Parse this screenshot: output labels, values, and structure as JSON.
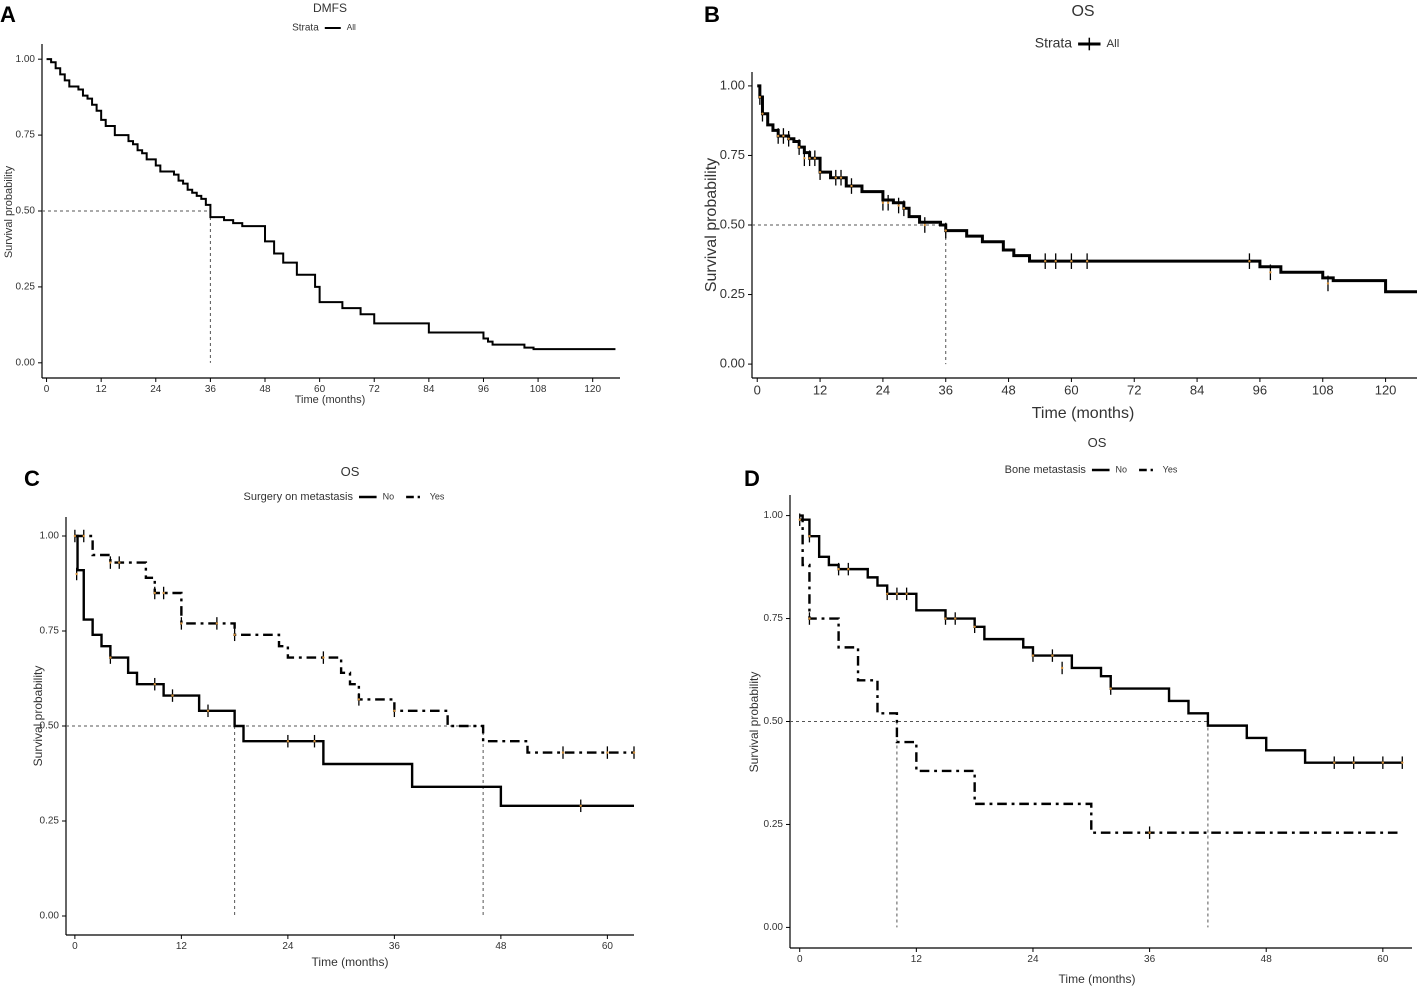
{
  "chart_data": [
    {
      "type": "line",
      "panel": "A",
      "title": "DMFS",
      "legend_title": "Strata",
      "xlabel": "Time (months)",
      "ylabel": "Survival probability",
      "xlim": [
        -1,
        126
      ],
      "ylim": [
        -0.05,
        1.05
      ],
      "xticks": [
        0,
        12,
        24,
        36,
        48,
        60,
        72,
        84,
        96,
        108,
        120
      ],
      "yticks": [
        0.0,
        0.25,
        0.5,
        0.75,
        1.0
      ],
      "ytick_labels": [
        "0.00",
        "0.25",
        "0.50",
        "0.75",
        "1.00"
      ],
      "median": [
        {
          "x": 36,
          "y": 0.5
        }
      ],
      "series": [
        {
          "name": "All",
          "style": "solid",
          "censors": [],
          "steps": [
            [
              0,
              1.0
            ],
            [
              1,
              0.99
            ],
            [
              2,
              0.97
            ],
            [
              3,
              0.95
            ],
            [
              4,
              0.93
            ],
            [
              5,
              0.91
            ],
            [
              7,
              0.9
            ],
            [
              8,
              0.88
            ],
            [
              9,
              0.87
            ],
            [
              10,
              0.85
            ],
            [
              11,
              0.83
            ],
            [
              12,
              0.8
            ],
            [
              13,
              0.78
            ],
            [
              15,
              0.75
            ],
            [
              18,
              0.73
            ],
            [
              19,
              0.72
            ],
            [
              20,
              0.7
            ],
            [
              21,
              0.69
            ],
            [
              22,
              0.67
            ],
            [
              24,
              0.65
            ],
            [
              25,
              0.63
            ],
            [
              28,
              0.62
            ],
            [
              29,
              0.6
            ],
            [
              30,
              0.59
            ],
            [
              31,
              0.57
            ],
            [
              32,
              0.56
            ],
            [
              33,
              0.55
            ],
            [
              34,
              0.54
            ],
            [
              35,
              0.52
            ],
            [
              36,
              0.48
            ],
            [
              39,
              0.47
            ],
            [
              41,
              0.46
            ],
            [
              43,
              0.45
            ],
            [
              48,
              0.4
            ],
            [
              50,
              0.36
            ],
            [
              52,
              0.33
            ],
            [
              55,
              0.29
            ],
            [
              59,
              0.25
            ],
            [
              60,
              0.2
            ],
            [
              65,
              0.18
            ],
            [
              69,
              0.16
            ],
            [
              72,
              0.13
            ],
            [
              84,
              0.1
            ],
            [
              96,
              0.08
            ],
            [
              97,
              0.07
            ],
            [
              98,
              0.06
            ],
            [
              105,
              0.05
            ],
            [
              107,
              0.045
            ],
            [
              125,
              0.045
            ]
          ]
        }
      ]
    },
    {
      "type": "line",
      "panel": "B",
      "title": "OS",
      "legend_title": "Strata",
      "xlabel": "Time (months)",
      "ylabel": "Survival probability",
      "xlim": [
        -1,
        126
      ],
      "ylim": [
        -0.05,
        1.05
      ],
      "xticks": [
        0,
        12,
        24,
        36,
        48,
        60,
        72,
        84,
        96,
        108,
        120
      ],
      "yticks": [
        0.0,
        0.25,
        0.5,
        0.75,
        1.0
      ],
      "ytick_labels": [
        "0.00",
        "0.25",
        "0.50",
        "0.75",
        "1.00"
      ],
      "median": [
        {
          "x": 36,
          "y": 0.5
        }
      ],
      "series": [
        {
          "name": "All",
          "style": "solid",
          "censors": [
            [
              0.5,
              0.96
            ],
            [
              1,
              0.9
            ],
            [
              4,
              0.82
            ],
            [
              5,
              0.82
            ],
            [
              6,
              0.81
            ],
            [
              8,
              0.78
            ],
            [
              9,
              0.74
            ],
            [
              10,
              0.74
            ],
            [
              11,
              0.74
            ],
            [
              12,
              0.69
            ],
            [
              15,
              0.67
            ],
            [
              16,
              0.67
            ],
            [
              18,
              0.64
            ],
            [
              24,
              0.58
            ],
            [
              25,
              0.58
            ],
            [
              27,
              0.57
            ],
            [
              28,
              0.56
            ],
            [
              32,
              0.5
            ],
            [
              36,
              0.48
            ],
            [
              55,
              0.37
            ],
            [
              57,
              0.37
            ],
            [
              60,
              0.37
            ],
            [
              63,
              0.37
            ],
            [
              94,
              0.37
            ],
            [
              98,
              0.33
            ],
            [
              109,
              0.29
            ]
          ],
          "steps": [
            [
              0,
              1.0
            ],
            [
              0.5,
              0.96
            ],
            [
              1,
              0.9
            ],
            [
              2,
              0.86
            ],
            [
              3,
              0.84
            ],
            [
              4,
              0.82
            ],
            [
              6,
              0.81
            ],
            [
              7,
              0.8
            ],
            [
              8,
              0.78
            ],
            [
              9,
              0.76
            ],
            [
              10,
              0.74
            ],
            [
              12,
              0.69
            ],
            [
              14,
              0.67
            ],
            [
              17,
              0.64
            ],
            [
              20,
              0.62
            ],
            [
              24,
              0.59
            ],
            [
              26,
              0.58
            ],
            [
              28,
              0.56
            ],
            [
              29,
              0.53
            ],
            [
              31,
              0.51
            ],
            [
              35,
              0.5
            ],
            [
              36,
              0.48
            ],
            [
              40,
              0.46
            ],
            [
              43,
              0.44
            ],
            [
              47,
              0.41
            ],
            [
              49,
              0.39
            ],
            [
              52,
              0.37
            ],
            [
              96,
              0.35
            ],
            [
              100,
              0.33
            ],
            [
              108,
              0.31
            ],
            [
              110,
              0.3
            ],
            [
              120,
              0.26
            ],
            [
              126,
              0.26
            ]
          ]
        }
      ]
    },
    {
      "type": "line",
      "panel": "C",
      "title": "OS",
      "legend_title": "Surgery on metastasis",
      "xlabel": "Time (months)",
      "ylabel": "Survival probability",
      "xlim": [
        -1,
        63
      ],
      "ylim": [
        -0.05,
        1.05
      ],
      "xticks": [
        0,
        12,
        24,
        36,
        48,
        60
      ],
      "yticks": [
        0.0,
        0.25,
        0.5,
        0.75,
        1.0
      ],
      "ytick_labels": [
        "0.00",
        "0.25",
        "0.50",
        "0.75",
        "1.00"
      ],
      "median": [
        {
          "x": 18,
          "y": 0.5
        },
        {
          "x": 46,
          "y": 0.5
        }
      ],
      "series": [
        {
          "name": "No",
          "style": "solid",
          "censors": [
            [
              0.2,
              0.9
            ],
            [
              4,
              0.68
            ],
            [
              9,
              0.61
            ],
            [
              11,
              0.58
            ],
            [
              15,
              0.54
            ],
            [
              24,
              0.46
            ],
            [
              27,
              0.46
            ],
            [
              57,
              0.29
            ]
          ],
          "steps": [
            [
              0,
              1.0
            ],
            [
              0.3,
              0.91
            ],
            [
              1,
              0.78
            ],
            [
              2,
              0.74
            ],
            [
              3,
              0.71
            ],
            [
              4,
              0.68
            ],
            [
              6,
              0.64
            ],
            [
              7,
              0.61
            ],
            [
              10,
              0.58
            ],
            [
              14,
              0.54
            ],
            [
              18,
              0.5
            ],
            [
              19,
              0.46
            ],
            [
              28,
              0.4
            ],
            [
              38,
              0.34
            ],
            [
              48,
              0.29
            ],
            [
              63,
              0.29
            ]
          ]
        },
        {
          "name": "Yes",
          "style": "dashdot",
          "censors": [
            [
              0,
              1.0
            ],
            [
              1,
              1.0
            ],
            [
              4,
              0.93
            ],
            [
              5,
              0.93
            ],
            [
              9,
              0.85
            ],
            [
              10,
              0.85
            ],
            [
              12,
              0.77
            ],
            [
              16,
              0.77
            ],
            [
              18,
              0.74
            ],
            [
              28,
              0.68
            ],
            [
              32,
              0.57
            ],
            [
              36,
              0.54
            ],
            [
              55,
              0.43
            ],
            [
              60,
              0.43
            ],
            [
              63,
              0.43
            ]
          ],
          "steps": [
            [
              0,
              1.0
            ],
            [
              2,
              0.95
            ],
            [
              4,
              0.93
            ],
            [
              8,
              0.89
            ],
            [
              9,
              0.85
            ],
            [
              12,
              0.77
            ],
            [
              18,
              0.74
            ],
            [
              23,
              0.71
            ],
            [
              24,
              0.68
            ],
            [
              30,
              0.64
            ],
            [
              31,
              0.61
            ],
            [
              32,
              0.57
            ],
            [
              36,
              0.54
            ],
            [
              42,
              0.5
            ],
            [
              46,
              0.46
            ],
            [
              51,
              0.43
            ],
            [
              63,
              0.43
            ]
          ]
        }
      ]
    },
    {
      "type": "line",
      "panel": "D",
      "title": "OS",
      "legend_title": "Bone metastasis",
      "xlabel": "Time (months)",
      "ylabel": "Survival probability",
      "xlim": [
        -1,
        63
      ],
      "ylim": [
        -0.05,
        1.05
      ],
      "xticks": [
        0,
        12,
        24,
        36,
        48,
        60
      ],
      "yticks": [
        0.0,
        0.25,
        0.5,
        0.75,
        1.0
      ],
      "ytick_labels": [
        "0.00",
        "0.25",
        "0.50",
        "0.75",
        "1.00"
      ],
      "median": [
        {
          "x": 10,
          "y": 0.5
        },
        {
          "x": 42,
          "y": 0.5
        }
      ],
      "series": [
        {
          "name": "No",
          "style": "solid",
          "censors": [
            [
              0,
              0.99
            ],
            [
              1,
              0.95
            ],
            [
              4,
              0.87
            ],
            [
              5,
              0.87
            ],
            [
              9,
              0.81
            ],
            [
              10,
              0.81
            ],
            [
              11,
              0.81
            ],
            [
              15,
              0.75
            ],
            [
              16,
              0.75
            ],
            [
              18,
              0.73
            ],
            [
              24,
              0.66
            ],
            [
              26,
              0.66
            ],
            [
              27,
              0.63
            ],
            [
              32,
              0.58
            ],
            [
              55,
              0.4
            ],
            [
              57,
              0.4
            ],
            [
              60,
              0.4
            ],
            [
              62,
              0.4
            ]
          ],
          "steps": [
            [
              0,
              0.99
            ],
            [
              1,
              0.95
            ],
            [
              2,
              0.9
            ],
            [
              3,
              0.88
            ],
            [
              4,
              0.87
            ],
            [
              7,
              0.85
            ],
            [
              8,
              0.83
            ],
            [
              9,
              0.81
            ],
            [
              12,
              0.77
            ],
            [
              15,
              0.75
            ],
            [
              18,
              0.73
            ],
            [
              19,
              0.7
            ],
            [
              23,
              0.68
            ],
            [
              24,
              0.66
            ],
            [
              28,
              0.63
            ],
            [
              31,
              0.61
            ],
            [
              32,
              0.58
            ],
            [
              38,
              0.55
            ],
            [
              40,
              0.52
            ],
            [
              42,
              0.49
            ],
            [
              46,
              0.46
            ],
            [
              48,
              0.43
            ],
            [
              52,
              0.4
            ],
            [
              62,
              0.4
            ]
          ]
        },
        {
          "name": "Yes",
          "style": "dashdot",
          "censors": [
            [
              1,
              0.75
            ],
            [
              36,
              0.23
            ]
          ],
          "steps": [
            [
              0,
              1.0
            ],
            [
              0.3,
              0.88
            ],
            [
              1,
              0.75
            ],
            [
              4,
              0.68
            ],
            [
              6,
              0.6
            ],
            [
              8,
              0.52
            ],
            [
              10,
              0.45
            ],
            [
              12,
              0.38
            ],
            [
              18,
              0.3
            ],
            [
              30,
              0.23
            ],
            [
              62,
              0.23
            ]
          ]
        }
      ]
    }
  ]
}
